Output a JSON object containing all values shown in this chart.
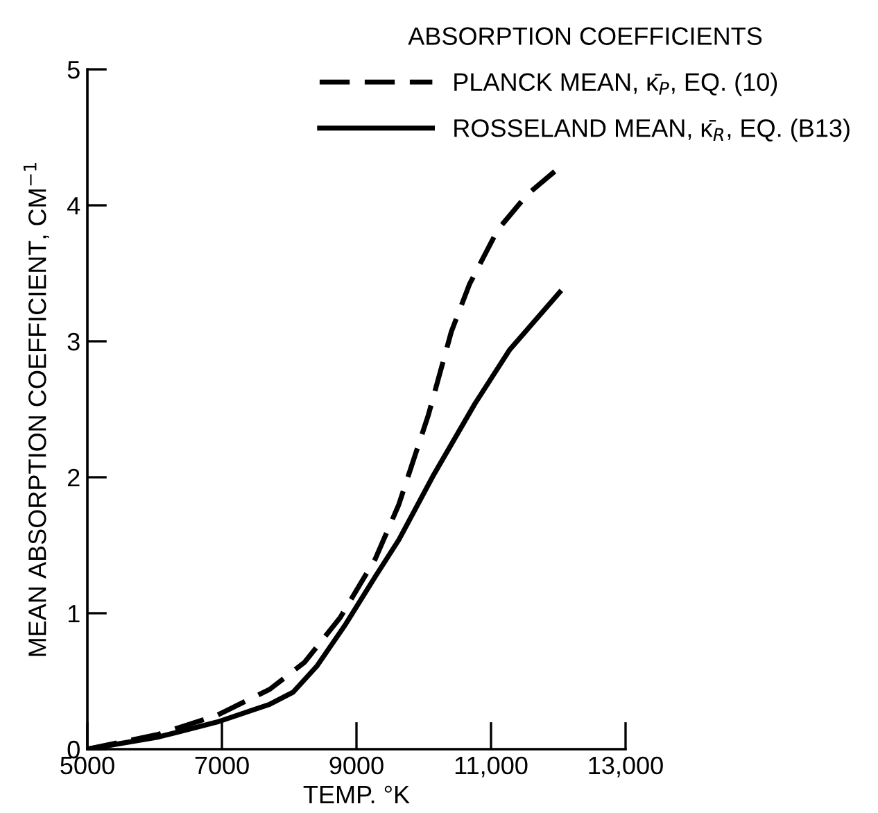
{
  "chart_data": {
    "type": "line",
    "xlabel": "TEMP. °K",
    "ylabel": "MEAN ABSORPTION COEFFICIENT, CM$^{−1}$",
    "legend_title": "ABSORPTION COEFFICIENTS",
    "xlim": [
      5000,
      13000
    ],
    "xticks": [
      5000,
      7000,
      9000,
      {
        "value": 11000,
        "label": "11,000"
      },
      {
        "value": 13000,
        "label": "13,000"
      }
    ],
    "ylim": [
      0,
      5
    ],
    "yticks": [
      0,
      1,
      2,
      3,
      4,
      5
    ],
    "grid": false,
    "legend": "top right",
    "marker": "none",
    "series": [
      {
        "name": "PLANCK MEAN, κ̄$_{P}$, EQ. (10)",
        "color": "#000000",
        "line_style": "dashed",
        "x": [
          5000,
          6060,
          6930,
          7710,
          8230,
          8760,
          9280,
          9630,
          10070,
          10410,
          10680,
          11100,
          11540,
          12020
        ],
        "values": [
          0,
          0.11,
          0.25,
          0.44,
          0.64,
          0.97,
          1.4,
          1.8,
          2.46,
          3.07,
          3.42,
          3.82,
          4.08,
          4.28
        ]
      },
      {
        "name": "ROSSELAND MEAN, κ̄$_{R}$, EQ. (B13)",
        "color": "#000000",
        "line_style": "solid",
        "x": [
          5000,
          6060,
          6930,
          7710,
          8060,
          8410,
          8840,
          9280,
          9630,
          10150,
          10760,
          11280,
          12020
        ],
        "values": [
          0,
          0.09,
          0.2,
          0.33,
          0.42,
          0.61,
          0.92,
          1.27,
          1.54,
          2.02,
          2.54,
          2.94,
          3.36
        ]
      }
    ]
  }
}
